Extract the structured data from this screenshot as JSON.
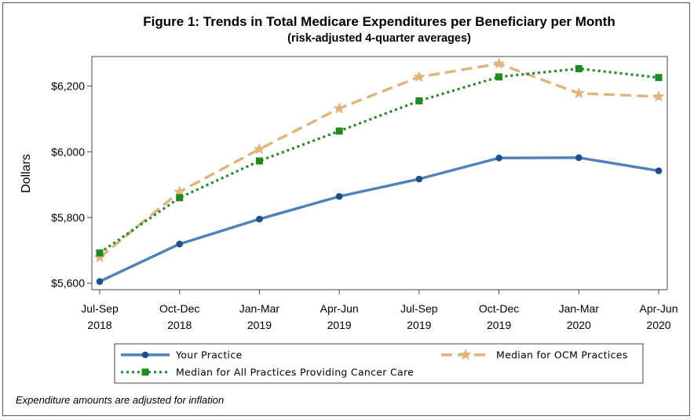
{
  "chart_data": {
    "type": "line",
    "title": "Figure 1: Trends in Total Medicare Expenditures per Beneficiary per Month",
    "subtitle": "(risk-adjusted 4-quarter averages)",
    "xlabel": "",
    "ylabel": "Dollars",
    "categories": [
      [
        "Jul-Sep",
        "2018"
      ],
      [
        "Oct-Dec",
        "2018"
      ],
      [
        "Jan-Mar",
        "2019"
      ],
      [
        "Apr-Jun",
        "2019"
      ],
      [
        "Jul-Sep",
        "2019"
      ],
      [
        "Oct-Dec",
        "2019"
      ],
      [
        "Jan-Mar",
        "2020"
      ],
      [
        "Apr-Jun",
        "2020"
      ]
    ],
    "ylim": [
      5580,
      6290
    ],
    "yticks": [
      5600,
      5800,
      6000,
      6200
    ],
    "ytick_labels": [
      "$5,600",
      "$5,800",
      "$6,000",
      "$6,200"
    ],
    "grid": false,
    "legend_position": "bottom",
    "series": [
      {
        "name": "Your Practice",
        "color": "#4f81bd",
        "dash": "solid",
        "marker": "circle",
        "marker_color": "#1f4e8c",
        "values": [
          5605,
          5719,
          5795,
          5864,
          5917,
          5981,
          5982,
          5942
        ]
      },
      {
        "name": "Median for OCM Practices",
        "color": "#e0b47a",
        "dash": "dashed",
        "marker": "star",
        "marker_color": "#e0b47a",
        "values": [
          5678,
          5878,
          6008,
          6132,
          6228,
          6268,
          6178,
          6168
        ]
      },
      {
        "name": "Median for All Practices Providing Cancer Care",
        "color": "#1f8a1f",
        "dash": "dotted",
        "marker": "square",
        "marker_color": "#1f8a1f",
        "values": [
          5692,
          5860,
          5972,
          6063,
          6155,
          6228,
          6253,
          6226
        ]
      }
    ]
  },
  "footnote": "Expenditure amounts are adjusted for inflation"
}
